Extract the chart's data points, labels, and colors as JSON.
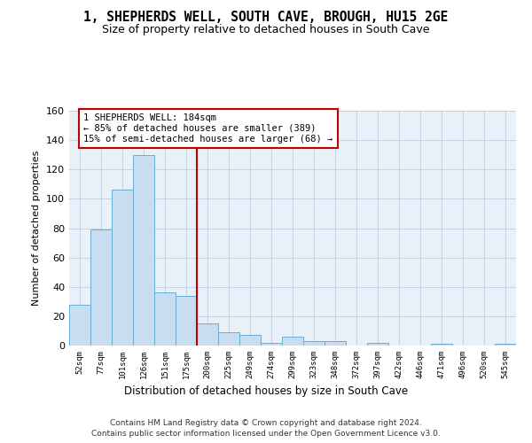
{
  "title": "1, SHEPHERDS WELL, SOUTH CAVE, BROUGH, HU15 2GE",
  "subtitle": "Size of property relative to detached houses in South Cave",
  "xlabel": "Distribution of detached houses by size in South Cave",
  "ylabel": "Number of detached properties",
  "categories": [
    "52sqm",
    "77sqm",
    "101sqm",
    "126sqm",
    "151sqm",
    "175sqm",
    "200sqm",
    "225sqm",
    "249sqm",
    "274sqm",
    "299sqm",
    "323sqm",
    "348sqm",
    "372sqm",
    "397sqm",
    "422sqm",
    "446sqm",
    "471sqm",
    "496sqm",
    "520sqm",
    "545sqm"
  ],
  "values": [
    28,
    79,
    106,
    130,
    36,
    34,
    15,
    9,
    7,
    2,
    6,
    3,
    3,
    0,
    2,
    0,
    0,
    1,
    0,
    0,
    1
  ],
  "bar_color": "#c9ddf0",
  "bar_edge_color": "#6aaed6",
  "ylim": [
    0,
    160
  ],
  "yticks": [
    0,
    20,
    40,
    60,
    80,
    100,
    120,
    140,
    160
  ],
  "vline_x": 5.5,
  "vline_color": "#c00000",
  "annotation_text": "1 SHEPHERDS WELL: 184sqm\n← 85% of detached houses are smaller (389)\n15% of semi-detached houses are larger (68) →",
  "footer1": "Contains HM Land Registry data © Crown copyright and database right 2024.",
  "footer2": "Contains public sector information licensed under the Open Government Licence v3.0.",
  "plot_bg_color": "#eaf0f8",
  "annotation_box_color": "#ffffff",
  "annotation_border_color": "#c00000"
}
